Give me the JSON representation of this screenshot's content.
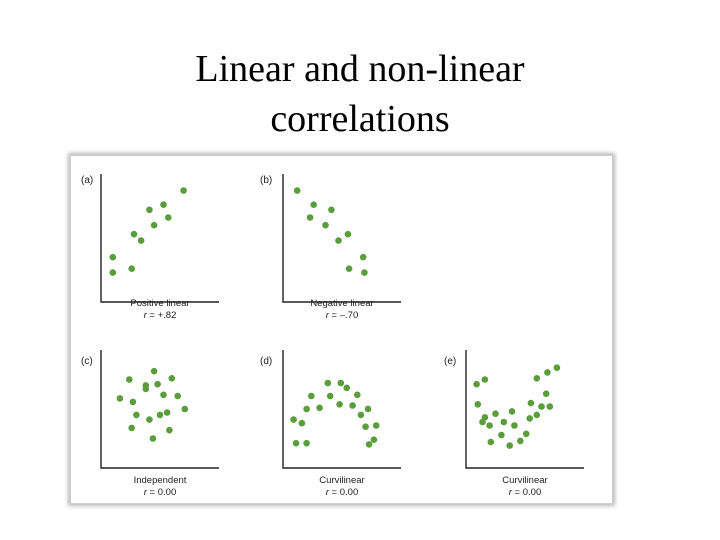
{
  "title": {
    "line1": "Linear and non-linear",
    "line2": "correlations"
  },
  "accent_color": "#5a9e3b",
  "chart_data": [
    {
      "type": "scatter",
      "panel_label": "(a)",
      "caption": "Positive linear",
      "r_label": "r",
      "r_value": "= +.82",
      "xlim": [
        0,
        10
      ],
      "ylim": [
        0,
        10
      ],
      "points": [
        [
          1,
          3.5
        ],
        [
          1,
          2.3
        ],
        [
          2.6,
          2.6
        ],
        [
          2.8,
          5.3
        ],
        [
          3.4,
          4.8
        ],
        [
          4.1,
          7.2
        ],
        [
          4.5,
          6.0
        ],
        [
          5.3,
          7.6
        ],
        [
          5.7,
          6.6
        ],
        [
          7.0,
          8.7
        ]
      ]
    },
    {
      "type": "scatter",
      "panel_label": "(b)",
      "caption": "Negative linear",
      "r_label": "r",
      "r_value": "= –.70",
      "xlim": [
        0,
        10
      ],
      "ylim": [
        0,
        10
      ],
      "points": [
        [
          1.2,
          8.7
        ],
        [
          2.3,
          6.6
        ],
        [
          2.6,
          7.6
        ],
        [
          3.6,
          6.0
        ],
        [
          4.1,
          7.2
        ],
        [
          4.7,
          4.8
        ],
        [
          5.5,
          5.3
        ],
        [
          5.6,
          2.6
        ],
        [
          6.8,
          3.5
        ],
        [
          6.9,
          2.3
        ]
      ]
    },
    {
      "type": "scatter",
      "panel_label": "(c)",
      "caption": "Independent",
      "r_label": "r",
      "r_value": "= 0.00",
      "xlim": [
        0,
        10
      ],
      "ylim": [
        0,
        10
      ],
      "points": [
        [
          1.6,
          5.9
        ],
        [
          2.4,
          7.5
        ],
        [
          2.7,
          5.6
        ],
        [
          2.6,
          3.4
        ],
        [
          3.0,
          4.5
        ],
        [
          3.8,
          6.7
        ],
        [
          3.8,
          7.0
        ],
        [
          4.1,
          4.1
        ],
        [
          4.4,
          2.5
        ],
        [
          4.5,
          8.2
        ],
        [
          4.8,
          7.1
        ],
        [
          5.0,
          4.5
        ],
        [
          5.3,
          6.2
        ],
        [
          5.6,
          4.7
        ],
        [
          5.8,
          3.2
        ],
        [
          6.0,
          7.6
        ],
        [
          6.5,
          6.1
        ],
        [
          7.1,
          5.0
        ]
      ]
    },
    {
      "type": "scatter",
      "panel_label": "(d)",
      "caption": "Curvilinear",
      "r_label": "r",
      "r_value": "= 0.00",
      "xlim": [
        0,
        10
      ],
      "ylim": [
        0,
        10
      ],
      "points": [
        [
          0.9,
          4.1
        ],
        [
          1.1,
          2.1
        ],
        [
          1.6,
          3.8
        ],
        [
          2.0,
          5.0
        ],
        [
          2.0,
          2.1
        ],
        [
          2.4,
          6.1
        ],
        [
          3.1,
          5.1
        ],
        [
          3.8,
          7.2
        ],
        [
          4.0,
          6.1
        ],
        [
          4.8,
          5.4
        ],
        [
          4.9,
          7.2
        ],
        [
          5.4,
          6.8
        ],
        [
          5.9,
          5.3
        ],
        [
          6.3,
          6.2
        ],
        [
          6.6,
          4.5
        ],
        [
          7.0,
          3.5
        ],
        [
          7.2,
          5.0
        ],
        [
          7.3,
          2.0
        ],
        [
          7.7,
          2.4
        ],
        [
          7.9,
          3.6
        ]
      ]
    },
    {
      "type": "scatter",
      "panel_label": "(e)",
      "caption": "Curvilinear",
      "r_label": "r",
      "r_value": "= 0.00",
      "xlim": [
        0,
        10
      ],
      "ylim": [
        0,
        10
      ],
      "points": [
        [
          0.9,
          7.1
        ],
        [
          1.0,
          5.4
        ],
        [
          1.4,
          3.9
        ],
        [
          1.6,
          7.5
        ],
        [
          1.6,
          4.3
        ],
        [
          2.0,
          3.6
        ],
        [
          2.1,
          2.2
        ],
        [
          2.5,
          4.6
        ],
        [
          3.0,
          2.8
        ],
        [
          3.2,
          3.9
        ],
        [
          3.7,
          1.9
        ],
        [
          3.9,
          4.8
        ],
        [
          4.1,
          3.6
        ],
        [
          4.6,
          2.3
        ],
        [
          5.1,
          2.9
        ],
        [
          5.4,
          4.2
        ],
        [
          5.5,
          5.5
        ],
        [
          6.0,
          7.6
        ],
        [
          6.0,
          4.5
        ],
        [
          6.4,
          5.2
        ],
        [
          6.8,
          6.3
        ],
        [
          6.9,
          8.1
        ],
        [
          7.1,
          5.2
        ],
        [
          7.7,
          8.5
        ]
      ]
    }
  ]
}
